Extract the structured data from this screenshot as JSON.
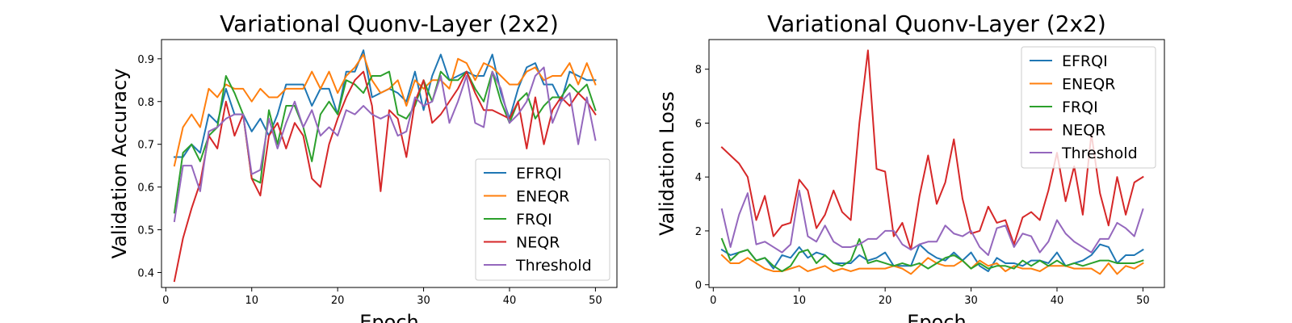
{
  "chart_data": [
    {
      "type": "line",
      "title": "Variational Quonv-Layer (2x2)",
      "xlabel": "Epoch",
      "ylabel": "Validation Accuracy",
      "xlim": [
        -0.5,
        52.5
      ],
      "ylim": [
        0.365,
        0.945
      ],
      "xticks": [
        0,
        10,
        20,
        30,
        40,
        50
      ],
      "yticks": [
        0.4,
        0.5,
        0.6,
        0.7,
        0.8,
        0.9
      ],
      "ytick_labels": [
        "0.4",
        "0.5",
        "0.6",
        "0.7",
        "0.8",
        "0.9"
      ],
      "grid": false,
      "legend": "lower-right",
      "x": [
        1,
        2,
        3,
        4,
        5,
        6,
        7,
        8,
        9,
        10,
        11,
        12,
        13,
        14,
        15,
        16,
        17,
        18,
        19,
        20,
        21,
        22,
        23,
        24,
        25,
        26,
        27,
        28,
        29,
        30,
        31,
        32,
        33,
        34,
        35,
        36,
        37,
        38,
        39,
        40,
        41,
        42,
        43,
        44,
        45,
        46,
        47,
        48,
        49,
        50
      ],
      "series": [
        {
          "name": "EFRQI",
          "color": "#1f77b4",
          "values": [
            0.67,
            0.67,
            0.7,
            0.68,
            0.77,
            0.75,
            0.83,
            0.77,
            0.77,
            0.73,
            0.76,
            0.72,
            0.77,
            0.84,
            0.84,
            0.84,
            0.79,
            0.83,
            0.83,
            0.77,
            0.87,
            0.87,
            0.92,
            0.81,
            0.82,
            0.83,
            0.82,
            0.8,
            0.87,
            0.78,
            0.86,
            0.91,
            0.85,
            0.86,
            0.87,
            0.86,
            0.86,
            0.91,
            0.82,
            0.76,
            0.83,
            0.88,
            0.89,
            0.84,
            0.84,
            0.8,
            0.87,
            0.86,
            0.85,
            0.85
          ]
        },
        {
          "name": "ENEQR",
          "color": "#ff7f0e",
          "values": [
            0.65,
            0.74,
            0.77,
            0.74,
            0.83,
            0.81,
            0.84,
            0.83,
            0.83,
            0.8,
            0.83,
            0.81,
            0.81,
            0.83,
            0.83,
            0.83,
            0.87,
            0.83,
            0.87,
            0.82,
            0.86,
            0.88,
            0.91,
            0.85,
            0.82,
            0.83,
            0.85,
            0.79,
            0.85,
            0.83,
            0.85,
            0.85,
            0.83,
            0.9,
            0.89,
            0.85,
            0.89,
            0.88,
            0.86,
            0.84,
            0.84,
            0.87,
            0.88,
            0.85,
            0.86,
            0.86,
            0.89,
            0.84,
            0.89,
            0.84
          ]
        },
        {
          "name": "FRQI",
          "color": "#2ca02c",
          "values": [
            0.54,
            0.68,
            0.7,
            0.66,
            0.72,
            0.74,
            0.86,
            0.82,
            0.77,
            0.62,
            0.61,
            0.78,
            0.7,
            0.79,
            0.79,
            0.74,
            0.66,
            0.77,
            0.8,
            0.77,
            0.85,
            0.84,
            0.82,
            0.86,
            0.86,
            0.87,
            0.77,
            0.76,
            0.79,
            0.85,
            0.8,
            0.87,
            0.85,
            0.85,
            0.87,
            0.83,
            0.8,
            0.87,
            0.8,
            0.75,
            0.8,
            0.82,
            0.76,
            0.79,
            0.81,
            0.81,
            0.84,
            0.82,
            0.84,
            0.78
          ]
        },
        {
          "name": "NEQR",
          "color": "#d62728",
          "values": [
            0.38,
            0.48,
            0.55,
            0.61,
            0.72,
            0.69,
            0.8,
            0.72,
            0.77,
            0.62,
            0.58,
            0.72,
            0.75,
            0.69,
            0.75,
            0.72,
            0.62,
            0.6,
            0.7,
            0.76,
            0.81,
            0.85,
            0.87,
            0.79,
            0.59,
            0.78,
            0.76,
            0.67,
            0.8,
            0.85,
            0.75,
            0.77,
            0.8,
            0.83,
            0.87,
            0.82,
            0.78,
            0.78,
            0.77,
            0.76,
            0.8,
            0.69,
            0.81,
            0.7,
            0.78,
            0.81,
            0.79,
            0.82,
            0.8,
            0.77
          ]
        },
        {
          "name": "Threshold",
          "color": "#9467bd",
          "values": [
            0.52,
            0.65,
            0.65,
            0.59,
            0.73,
            0.74,
            0.76,
            0.77,
            0.77,
            0.63,
            0.64,
            0.76,
            0.69,
            0.75,
            0.8,
            0.74,
            0.78,
            0.72,
            0.74,
            0.72,
            0.78,
            0.77,
            0.79,
            0.77,
            0.76,
            0.77,
            0.72,
            0.73,
            0.81,
            0.79,
            0.8,
            0.86,
            0.75,
            0.8,
            0.86,
            0.75,
            0.74,
            0.87,
            0.83,
            0.75,
            0.77,
            0.8,
            0.86,
            0.88,
            0.75,
            0.8,
            0.82,
            0.7,
            0.81,
            0.71
          ]
        }
      ]
    },
    {
      "type": "line",
      "title": "Variational Quonv-Layer (2x2)",
      "xlabel": "Epoch",
      "ylabel": "Validation Loss",
      "xlim": [
        -0.5,
        52.5
      ],
      "ylim": [
        -0.1,
        9.1
      ],
      "xticks": [
        0,
        10,
        20,
        30,
        40,
        50
      ],
      "yticks": [
        0,
        2,
        4,
        6,
        8
      ],
      "ytick_labels": [
        "0",
        "2",
        "4",
        "6",
        "8"
      ],
      "grid": false,
      "legend": "upper-right",
      "x": [
        1,
        2,
        3,
        4,
        5,
        6,
        7,
        8,
        9,
        10,
        11,
        12,
        13,
        14,
        15,
        16,
        17,
        18,
        19,
        20,
        21,
        22,
        23,
        24,
        25,
        26,
        27,
        28,
        29,
        30,
        31,
        32,
        33,
        34,
        35,
        36,
        37,
        38,
        39,
        40,
        41,
        42,
        43,
        44,
        45,
        46,
        47,
        48,
        49,
        50
      ],
      "series": [
        {
          "name": "EFRQI",
          "color": "#1f77b4",
          "values": [
            1.3,
            1.1,
            1.2,
            1.3,
            0.9,
            1.0,
            0.6,
            1.1,
            1.0,
            1.4,
            1.0,
            1.2,
            1.1,
            0.8,
            0.8,
            0.8,
            1.1,
            0.9,
            1.0,
            1.2,
            0.7,
            0.7,
            0.7,
            1.5,
            1.2,
            1.0,
            0.9,
            1.2,
            0.9,
            1.2,
            0.7,
            0.5,
            1.0,
            0.8,
            0.8,
            0.7,
            0.9,
            0.9,
            0.8,
            1.2,
            0.7,
            0.8,
            0.9,
            1.1,
            1.5,
            1.4,
            0.8,
            1.1,
            1.1,
            1.3
          ]
        },
        {
          "name": "ENEQR",
          "color": "#ff7f0e",
          "values": [
            1.1,
            0.8,
            0.8,
            1.0,
            0.8,
            0.6,
            0.5,
            0.5,
            0.6,
            0.7,
            0.5,
            0.6,
            0.7,
            0.5,
            0.6,
            0.5,
            0.6,
            0.6,
            0.6,
            0.6,
            0.7,
            0.6,
            0.4,
            0.7,
            1.0,
            0.8,
            0.7,
            0.7,
            0.9,
            0.6,
            0.9,
            0.7,
            0.8,
            0.5,
            0.7,
            0.6,
            0.6,
            0.5,
            0.7,
            0.7,
            0.7,
            0.6,
            0.6,
            0.6,
            0.4,
            0.8,
            0.4,
            0.7,
            0.6,
            0.8
          ]
        },
        {
          "name": "FRQI",
          "color": "#2ca02c",
          "values": [
            1.7,
            0.9,
            1.2,
            1.3,
            0.9,
            1.0,
            0.7,
            0.5,
            0.7,
            1.2,
            1.3,
            0.8,
            1.1,
            0.8,
            0.7,
            0.9,
            1.7,
            0.8,
            0.9,
            0.8,
            0.7,
            0.8,
            0.7,
            0.8,
            0.6,
            0.8,
            1.0,
            1.1,
            0.9,
            0.6,
            0.8,
            0.6,
            0.7,
            0.7,
            0.6,
            0.9,
            0.7,
            0.9,
            0.7,
            0.9,
            0.7,
            0.8,
            0.7,
            0.8,
            0.9,
            0.9,
            0.8,
            0.8,
            0.8,
            0.9
          ]
        },
        {
          "name": "NEQR",
          "color": "#d62728",
          "values": [
            5.1,
            4.8,
            4.5,
            4.0,
            2.4,
            3.3,
            1.8,
            2.2,
            2.3,
            3.9,
            3.5,
            2.1,
            2.6,
            3.5,
            2.7,
            2.4,
            6.0,
            8.7,
            4.3,
            4.2,
            1.8,
            2.3,
            1.3,
            3.3,
            4.8,
            3.0,
            3.8,
            5.4,
            3.2,
            1.9,
            2.0,
            2.9,
            2.3,
            2.4,
            1.5,
            2.5,
            2.7,
            2.4,
            3.5,
            4.9,
            3.1,
            4.4,
            2.6,
            5.6,
            3.4,
            2.2,
            4.0,
            2.6,
            3.8,
            4.0
          ]
        },
        {
          "name": "Threshold",
          "color": "#9467bd",
          "values": [
            2.8,
            1.4,
            2.6,
            3.4,
            1.5,
            1.6,
            1.4,
            1.2,
            1.5,
            3.5,
            1.8,
            1.6,
            2.2,
            1.6,
            1.4,
            1.4,
            1.5,
            1.7,
            1.7,
            2.0,
            2.0,
            1.5,
            1.3,
            1.5,
            1.6,
            1.6,
            2.2,
            1.9,
            1.8,
            2.0,
            1.4,
            1.1,
            2.1,
            2.2,
            1.4,
            1.9,
            1.8,
            1.2,
            1.6,
            2.4,
            1.9,
            1.6,
            1.4,
            1.2,
            1.7,
            1.7,
            2.3,
            2.1,
            1.8,
            2.8
          ]
        }
      ]
    }
  ]
}
